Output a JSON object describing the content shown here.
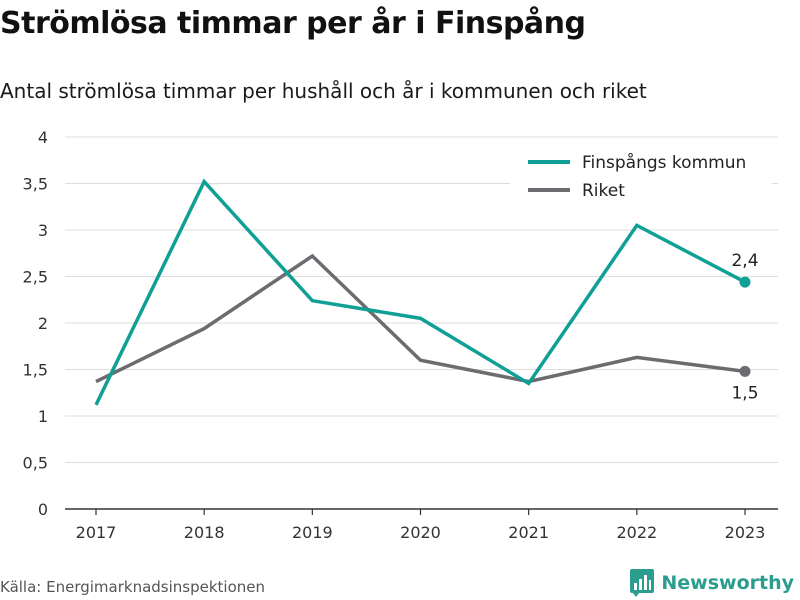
{
  "header": {
    "title": "Strömlösa timmar per år i Finspång",
    "subtitle": "Antal strömlösa timmar per hushåll och år i kommunen och riket"
  },
  "footer": {
    "source": "Källa: Energimarknadsinspektionen",
    "brand": "Newsworthy"
  },
  "colors": {
    "finspang": "#0fa095",
    "riket": "#6b6b70",
    "grid": "#dddddd",
    "axis": "#333333"
  },
  "chart_data": {
    "type": "line",
    "categories": [
      "2017",
      "2018",
      "2019",
      "2020",
      "2021",
      "2022",
      "2023"
    ],
    "series": [
      {
        "name": "Finspångs kommun",
        "values": [
          1.12,
          3.52,
          2.24,
          2.05,
          1.35,
          3.05,
          2.44
        ]
      },
      {
        "name": "Riket",
        "values": [
          1.37,
          1.94,
          2.72,
          1.6,
          1.37,
          1.63,
          1.48
        ]
      }
    ],
    "end_labels": [
      "2,4",
      "1,5"
    ],
    "ylim": [
      0,
      4
    ],
    "yticks": [
      0,
      0.5,
      1,
      1.5,
      2,
      2.5,
      3,
      3.5,
      4
    ],
    "ytick_labels": [
      "0",
      "0,5",
      "1",
      "1,5",
      "2",
      "2,5",
      "3",
      "3,5",
      "4"
    ],
    "grid": true,
    "legend_position": "top-right",
    "xlabel": "",
    "ylabel": ""
  }
}
